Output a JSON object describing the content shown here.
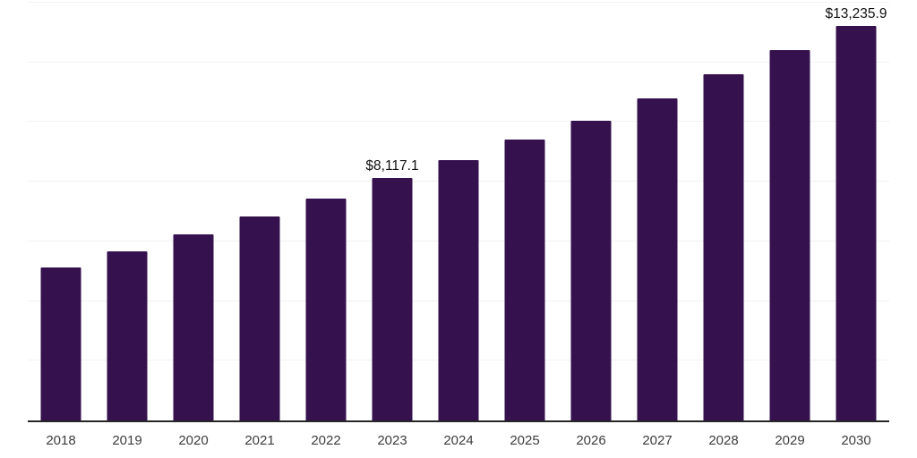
{
  "chart_data": {
    "type": "bar",
    "title": "",
    "xlabel": "",
    "ylabel": "",
    "categories": [
      "2018",
      "2019",
      "2020",
      "2021",
      "2022",
      "2023",
      "2024",
      "2025",
      "2026",
      "2027",
      "2028",
      "2029",
      "2030"
    ],
    "values": [
      5120,
      5660,
      6230,
      6830,
      7430,
      8117.1,
      8720,
      9400,
      10050,
      10780,
      11590,
      12400,
      13235.9
    ],
    "data_labels": [
      null,
      null,
      null,
      null,
      null,
      "$8,117.1",
      null,
      null,
      null,
      null,
      null,
      null,
      "$13,235.9"
    ],
    "ylim": [
      0,
      14000
    ],
    "gridline_step": 2000,
    "grid": "horizontal-only",
    "legend": "none",
    "y_axis_ticks_visible": false,
    "colors": {
      "bar": "#35114E",
      "gridline": "#f2f2f2",
      "axis_line": "#262626",
      "data_label": "#111111",
      "tick_label": "#3d3d3d",
      "background": "#ffffff"
    }
  }
}
